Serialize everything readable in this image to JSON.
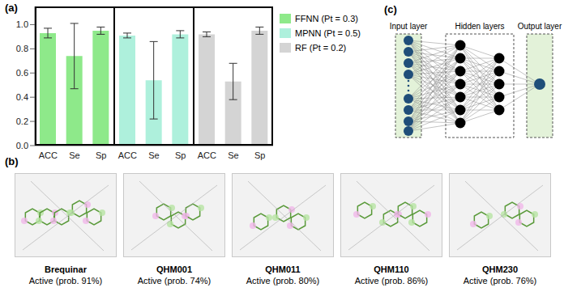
{
  "chart_data": {
    "type": "bar",
    "title": "(a)",
    "categories": [
      "ACC",
      "Se",
      "Sp"
    ],
    "series": [
      {
        "name": "FFNN (Pt = 0.3)",
        "color": "#8ee98a",
        "values": [
          0.93,
          0.74,
          0.95
        ],
        "errors": [
          0.04,
          0.27,
          0.03
        ]
      },
      {
        "name": "MPNN (Pt = 0.5)",
        "color": "#aef0dc",
        "values": [
          0.91,
          0.54,
          0.92
        ],
        "errors": [
          0.02,
          0.32,
          0.03
        ]
      },
      {
        "name": "RF (Pt = 0.2)",
        "color": "#d4d4d4",
        "values": [
          0.92,
          0.53,
          0.95
        ],
        "errors": [
          0.02,
          0.15,
          0.03
        ]
      }
    ],
    "ylim": [
      0,
      1.15
    ],
    "yticks": [
      {
        "value": 0,
        "label": "0.0"
      },
      {
        "value": 0.2,
        "label": "0.2"
      },
      {
        "value": 0.4,
        "label": "0.4"
      },
      {
        "value": 0.6,
        "label": "0.6"
      },
      {
        "value": 0.8,
        "label": "0.8"
      },
      {
        "value": 1,
        "label": "1.0"
      }
    ],
    "legend": "right"
  },
  "molecules": {
    "label": "(b)",
    "items": [
      {
        "name": "Brequinar",
        "prediction": "Active (prob. 91%)"
      },
      {
        "name": "QHM001",
        "prediction": "Active (prob. 74%)"
      },
      {
        "name": "QHM011",
        "prediction": "Active (prob. 80%)"
      },
      {
        "name": "QHM110",
        "prediction": "Active (prob. 86%)"
      },
      {
        "name": "QHM230",
        "prediction": "Active (prob. 76%)"
      }
    ]
  },
  "network": {
    "label": "(c)",
    "input_layer": "Input layer",
    "hidden_layers": "Hidden layers",
    "output_layer": "Output layer"
  }
}
